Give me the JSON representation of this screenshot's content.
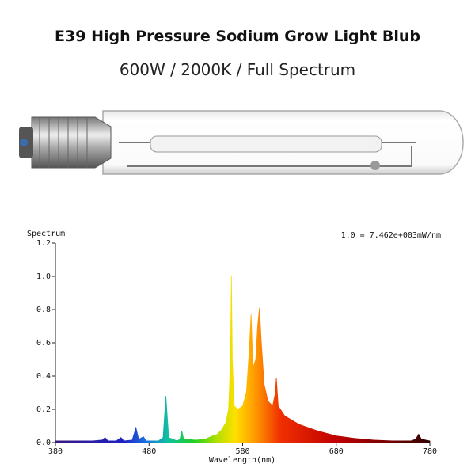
{
  "chart_data": {
    "type": "area",
    "title": "E39 High Pressure Sodium Grow Light Blub",
    "subtitle": "600W / 2000K / Full Spectrum",
    "y_label": "Spectrum",
    "x_label": "Wavelength(nm)",
    "annotation": "1.0 = 7.462e+003mW/nm",
    "xlim": [
      380,
      780
    ],
    "xticks": [
      380,
      480,
      580,
      680,
      780
    ],
    "ylim": [
      0,
      1.2
    ],
    "yticks": [
      {
        "value": 0,
        "label": "0.0"
      },
      0.2,
      0.4,
      0.6,
      0.8,
      {
        "value": 1,
        "label": "1.0"
      },
      1.2
    ],
    "x": [
      380,
      400,
      420,
      430,
      433,
      436,
      445,
      450,
      453,
      462,
      466,
      469,
      474,
      477,
      490,
      495,
      498,
      501,
      510,
      513,
      515,
      517,
      530,
      540,
      548,
      553,
      558,
      562,
      565,
      567,
      568,
      569,
      571,
      575,
      580,
      584,
      587,
      589,
      591,
      594,
      596,
      598,
      600,
      603,
      607,
      612,
      615,
      616,
      618,
      625,
      640,
      660,
      680,
      700,
      720,
      740,
      760,
      765,
      768,
      771,
      780
    ],
    "values": [
      0.01,
      0.01,
      0.01,
      0.015,
      0.03,
      0.01,
      0.01,
      0.03,
      0.01,
      0.015,
      0.09,
      0.02,
      0.035,
      0.01,
      0.01,
      0.03,
      0.28,
      0.03,
      0.01,
      0.02,
      0.07,
      0.02,
      0.015,
      0.02,
      0.04,
      0.05,
      0.08,
      0.12,
      0.2,
      0.5,
      1.0,
      0.5,
      0.22,
      0.2,
      0.22,
      0.3,
      0.55,
      0.77,
      0.45,
      0.5,
      0.7,
      0.81,
      0.6,
      0.35,
      0.25,
      0.22,
      0.3,
      0.39,
      0.22,
      0.16,
      0.11,
      0.07,
      0.04,
      0.025,
      0.015,
      0.01,
      0.01,
      0.02,
      0.05,
      0.02,
      0.01
    ]
  }
}
